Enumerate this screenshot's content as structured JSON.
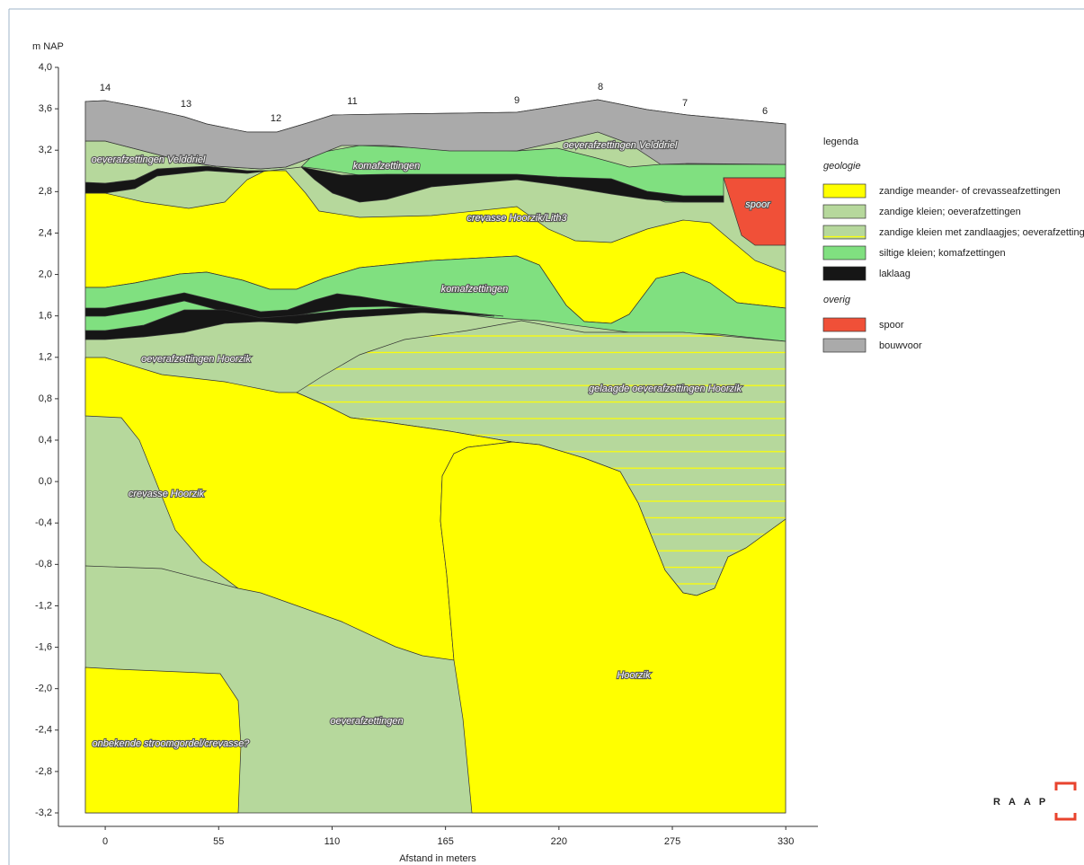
{
  "chart_data": {
    "type": "cross-section",
    "y_label": "m NAP",
    "x_label": "Afstand in meters",
    "xlim": [
      -22.7,
      345.6
    ],
    "ylim": [
      -3.33,
      4.0
    ],
    "xticks": [
      0,
      55,
      110,
      165,
      220,
      275,
      330
    ],
    "yticks": [
      {
        "value": 4.0,
        "label": "4,0"
      },
      {
        "value": 3.6,
        "label": "3,6"
      },
      {
        "value": 3.2,
        "label": "3,2"
      },
      {
        "value": 2.8,
        "label": "2,8"
      },
      {
        "value": 2.4,
        "label": "2,4"
      },
      {
        "value": 2.0,
        "label": "2,0"
      },
      {
        "value": 1.6,
        "label": "1,6"
      },
      {
        "value": 1.2,
        "label": "1,2"
      },
      {
        "value": 0.8,
        "label": "0,8"
      },
      {
        "value": 0.4,
        "label": "0,4"
      },
      {
        "value": 0.0,
        "label": "0,0"
      },
      {
        "value": -0.4,
        "label": "-0,4"
      },
      {
        "value": -0.8,
        "label": "-0,8"
      },
      {
        "value": -1.2,
        "label": "-1,2"
      },
      {
        "value": -1.6,
        "label": "-1,6"
      },
      {
        "value": -2.0,
        "label": "-2,0"
      },
      {
        "value": -2.4,
        "label": "-2,4"
      },
      {
        "value": -2.8,
        "label": "-2,8"
      },
      {
        "value": -3.2,
        "label": "-3,2"
      }
    ],
    "boreholes": [
      "14",
      "13",
      "12",
      "11",
      "9",
      "8",
      "7",
      "6"
    ],
    "unit_labels": [
      "oeverafzettingen Velddriel",
      "oeverafzettingen Velddriel",
      "komafzettingen",
      "crevasse Hoorzik/Lith3",
      "spoor",
      "komafzettingen",
      "oeverafzettingen Hoorzik",
      "gelaagde oeverafzettingen Hoorzik",
      "crevasse Hoorzik",
      "Hoorzik",
      "oeverafzettingen",
      "onbekende stroomgordel/crevasse?"
    ],
    "legend": {
      "title": "legenda",
      "groups": [
        {
          "title": "geologie",
          "items": [
            {
              "name": "zandige meander- of crevasseafzettingen",
              "color": "#ffff00"
            },
            {
              "name": "zandige kleien; oeverafzettingen",
              "color": "#b6d89c"
            },
            {
              "name": "zandige kleien met zandlaagjes; oeverafzettingen",
              "color": "#b6d89c"
            },
            {
              "name": "siltige kleien; komafzettingen",
              "color": "#80e080"
            },
            {
              "name": "laklaag",
              "color": "#161616"
            }
          ]
        },
        {
          "title": "overig",
          "items": [
            {
              "name": "spoor",
              "color": "#f05038"
            },
            {
              "name": "bouwvoor",
              "color": "#aaaaaa"
            }
          ]
        }
      ]
    },
    "logo": "RAAP"
  }
}
